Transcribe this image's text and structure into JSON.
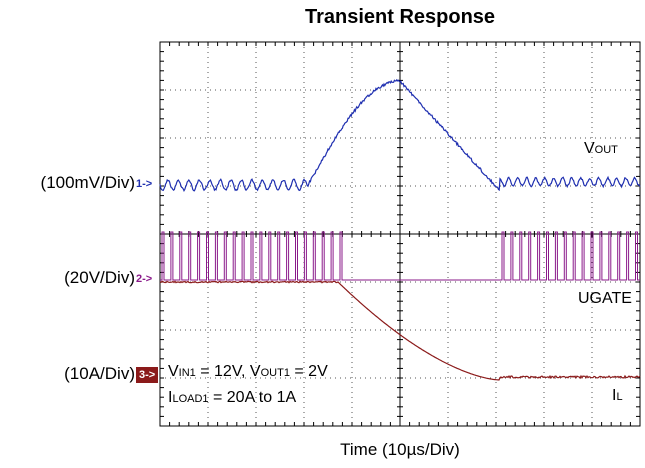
{
  "chart_data": {
    "type": "line",
    "title": "Transient Response",
    "xlabel": "Time (10µs/Div)",
    "ylabel": "",
    "grid": true,
    "divisions": {
      "x": 10,
      "y": 8
    },
    "channels": [
      {
        "marker": "1->",
        "scale": "(100mV/Div)",
        "color": "#1f2fb0"
      },
      {
        "marker": "2->",
        "scale": "(20V/Div)",
        "color": "#8a1a8a"
      },
      {
        "marker": "3->",
        "scale": "(10A/Div)",
        "color": "#8b1a1a"
      }
    ],
    "series": [
      {
        "name": "VOUT",
        "name_main": "V",
        "name_sub": "OUT"
      },
      {
        "name": "UGATE",
        "name_main": "UGATE",
        "name_sub": ""
      },
      {
        "name": "IL",
        "name_main": "I",
        "name_sub": "L"
      }
    ],
    "conditions": [
      {
        "parts": [
          [
            "V",
            "IN1",
            " = 12V, "
          ],
          [
            "V",
            "OUT1",
            " = 2V"
          ]
        ]
      },
      {
        "parts": [
          [
            "I",
            "LOAD1",
            " = 20A to 1A"
          ]
        ]
      }
    ]
  }
}
